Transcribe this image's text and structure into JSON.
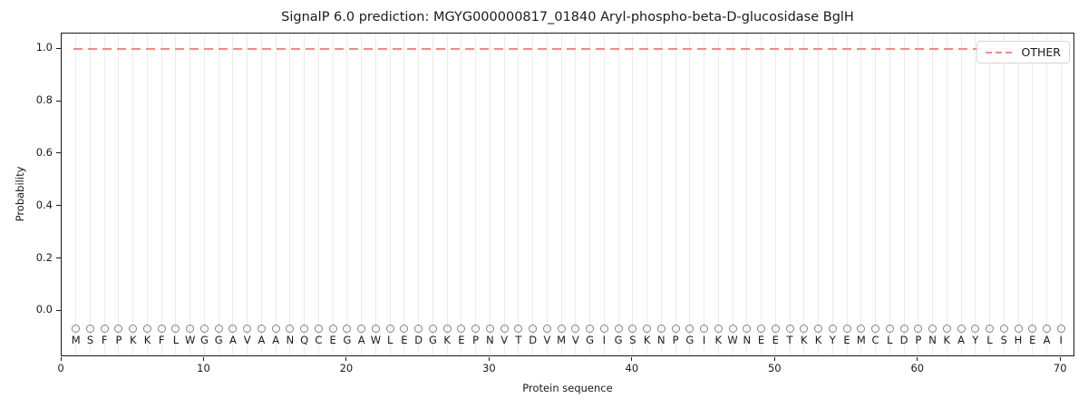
{
  "chart_data": {
    "type": "line",
    "title": "SignalP 6.0 prediction: MGYG000000817_01840 Aryl-phospho-beta-D-glucosidase BglH",
    "xlabel": "Protein sequence",
    "ylabel": "Probability",
    "xlim": [
      0,
      71
    ],
    "ylim": [
      -0.175,
      1.06
    ],
    "xticks": [
      0,
      10,
      20,
      30,
      40,
      50,
      60,
      70
    ],
    "ytick_labels": [
      "0.0",
      "0.2",
      "0.4",
      "0.6",
      "0.8",
      "1.0"
    ],
    "grid": "vertical gridline at every residue position",
    "grid_color": "#ebebeb",
    "legend": {
      "position": "upper-right",
      "entries": [
        {
          "label": "OTHER",
          "color": "#ef8a87",
          "linestyle": "dashed"
        }
      ]
    },
    "series": [
      {
        "name": "OTHER",
        "color": "#ef8a87",
        "linestyle": "dashed",
        "x_start": 1,
        "x_end": 70,
        "constant_y": 1.0
      }
    ],
    "sequence": "MSFPKKFLWGGAVAANQCEGAWLEDGKEPNVTDVMVGIGSKNPGIKWNEETKKYEMCLDPNKAYLSHEAI",
    "sequence_markers": {
      "shape": "open-circle",
      "color": "#828282",
      "y": -0.065
    },
    "sequence_letter_y": -0.11
  }
}
